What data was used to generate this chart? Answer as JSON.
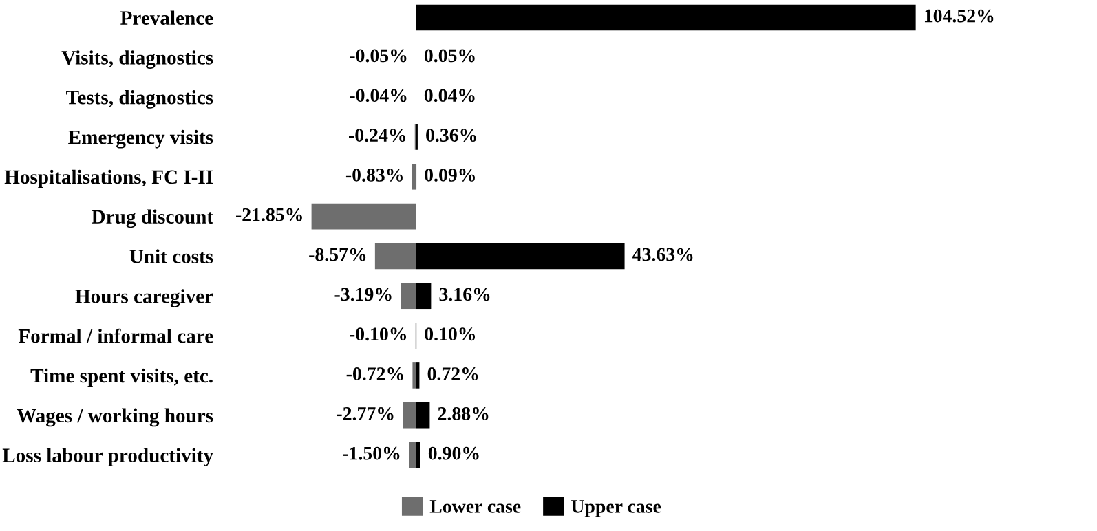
{
  "chart_data": {
    "type": "bar",
    "orientation": "horizontal",
    "data_labels": true,
    "legend": "bottom",
    "grid": false,
    "categories": [
      "Prevalence",
      "Visits, diagnostics",
      "Tests, diagnostics",
      "Emergency visits",
      "Hospitalisations, FC I-II",
      "Drug discount",
      "Unit costs",
      "Hours caregiver",
      "Formal / informal care",
      "Time spent visits, etc.",
      "Wages / working hours",
      "Loss labour productivity"
    ],
    "series": [
      {
        "name": "Lower case",
        "color": "#6e6e6e",
        "values": [
          null,
          -0.05,
          -0.04,
          -0.24,
          -0.83,
          -21.85,
          -8.57,
          -3.19,
          -0.1,
          -0.72,
          -2.77,
          -1.5
        ],
        "value_labels": [
          null,
          "-0.05%",
          "-0.04%",
          "-0.24%",
          "-0.83%",
          "-21.85%",
          "-8.57%",
          "-3.19%",
          "-0.10%",
          "-0.72%",
          "-2.77%",
          "-1.50%"
        ]
      },
      {
        "name": "Upper case",
        "color": "#000000",
        "values": [
          104.52,
          0.05,
          0.04,
          0.36,
          0.09,
          null,
          43.63,
          3.16,
          0.1,
          0.72,
          2.88,
          0.9
        ],
        "value_labels": [
          "104.52%",
          "0.05%",
          "0.04%",
          "0.36%",
          "0.09%",
          null,
          "43.63%",
          "3.16%",
          "0.10%",
          "0.72%",
          "2.88%",
          "0.90%"
        ]
      }
    ]
  }
}
